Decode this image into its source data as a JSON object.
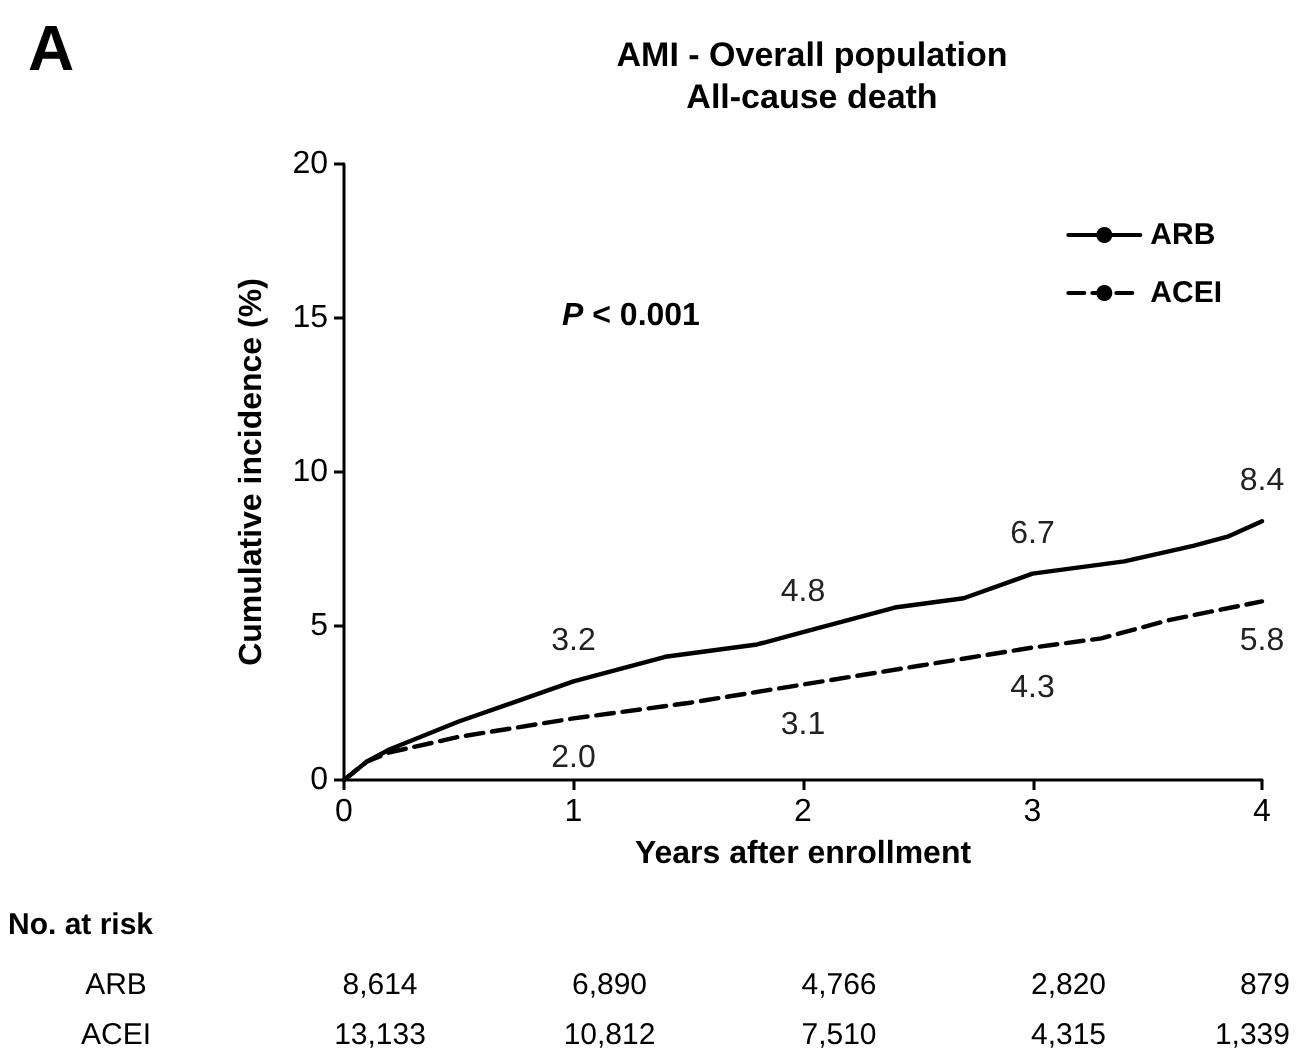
{
  "chart_data": {
    "type": "line",
    "title": "AMI - Overall population",
    "subtitle": "All-cause death",
    "xlabel": "Years after enrollment",
    "ylabel": "Cumulative incidence (%)",
    "xlim": [
      0,
      4
    ],
    "xticks": [
      0,
      1,
      2,
      3,
      4
    ],
    "ylim": [
      0,
      20
    ],
    "yticks": [
      0,
      5,
      10,
      15,
      20
    ],
    "grid": false,
    "legend": "top right",
    "marker": "none",
    "series": [
      {
        "name": "ARB",
        "color": "#000000",
        "line_style": "solid",
        "x": [
          0,
          0.1,
          0.2,
          0.5,
          1,
          1.4,
          1.8,
          2,
          2.4,
          2.7,
          3,
          3.4,
          3.7,
          3.85,
          4
        ],
        "values": [
          0,
          0.6,
          1.0,
          1.9,
          3.2,
          4.0,
          4.4,
          4.8,
          5.6,
          5.9,
          6.7,
          7.1,
          7.6,
          7.9,
          8.4
        ],
        "value_labels": [
          null,
          null,
          null,
          null,
          "3.2",
          null,
          null,
          "4.8",
          null,
          null,
          "6.7",
          null,
          null,
          null,
          "8.4"
        ]
      },
      {
        "name": "ACEI",
        "color": "#000000",
        "line_style": "dashed",
        "x": [
          0,
          0.1,
          0.2,
          0.5,
          1,
          1.5,
          2,
          2.5,
          3,
          3.3,
          3.6,
          4
        ],
        "values": [
          0,
          0.6,
          0.9,
          1.4,
          2.0,
          2.5,
          3.1,
          3.7,
          4.3,
          4.6,
          5.2,
          5.8
        ],
        "value_labels": [
          null,
          null,
          null,
          null,
          "2.0",
          null,
          "3.1",
          null,
          "4.3",
          null,
          null,
          "5.8"
        ]
      }
    ],
    "annotations": [
      "A",
      "P < 0.001",
      "No. at risk",
      "ARB",
      "8,614",
      "6,890",
      "4,766",
      "2,820",
      "879",
      "ACEI",
      "13,133",
      "10,812",
      "7,510",
      "4,315",
      "1,339"
    ]
  }
}
